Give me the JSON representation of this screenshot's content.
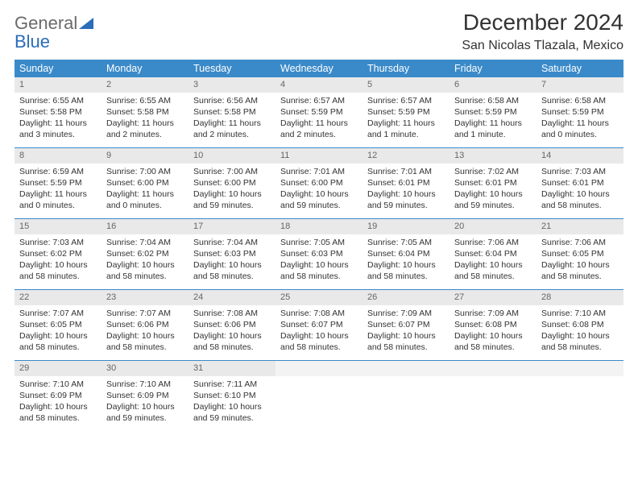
{
  "brand": {
    "word1": "General",
    "word2": "Blue",
    "word1_color": "#6a6a6a",
    "word2_color": "#2a6db8",
    "triangle_color": "#2a6db8"
  },
  "title": "December 2024",
  "location": "San Nicolas Tlazala, Mexico",
  "colors": {
    "header_bg": "#3a8ac9",
    "header_text": "#ffffff",
    "datenum_bg": "#e9e9e9",
    "datenum_text": "#666666",
    "row_divider": "#3a8ac9",
    "body_text": "#333333",
    "page_bg": "#ffffff"
  },
  "typography": {
    "title_fontsize": 28,
    "location_fontsize": 16,
    "dayheader_fontsize": 12.5,
    "cell_fontsize": 10.5,
    "datenum_fontsize": 11
  },
  "day_headers": [
    "Sunday",
    "Monday",
    "Tuesday",
    "Wednesday",
    "Thursday",
    "Friday",
    "Saturday"
  ],
  "weeks": [
    [
      {
        "date": "1",
        "sunrise": "6:55 AM",
        "sunset": "5:58 PM",
        "daylight": "11 hours and 3 minutes."
      },
      {
        "date": "2",
        "sunrise": "6:55 AM",
        "sunset": "5:58 PM",
        "daylight": "11 hours and 2 minutes."
      },
      {
        "date": "3",
        "sunrise": "6:56 AM",
        "sunset": "5:58 PM",
        "daylight": "11 hours and 2 minutes."
      },
      {
        "date": "4",
        "sunrise": "6:57 AM",
        "sunset": "5:59 PM",
        "daylight": "11 hours and 2 minutes."
      },
      {
        "date": "5",
        "sunrise": "6:57 AM",
        "sunset": "5:59 PM",
        "daylight": "11 hours and 1 minute."
      },
      {
        "date": "6",
        "sunrise": "6:58 AM",
        "sunset": "5:59 PM",
        "daylight": "11 hours and 1 minute."
      },
      {
        "date": "7",
        "sunrise": "6:58 AM",
        "sunset": "5:59 PM",
        "daylight": "11 hours and 0 minutes."
      }
    ],
    [
      {
        "date": "8",
        "sunrise": "6:59 AM",
        "sunset": "5:59 PM",
        "daylight": "11 hours and 0 minutes."
      },
      {
        "date": "9",
        "sunrise": "7:00 AM",
        "sunset": "6:00 PM",
        "daylight": "11 hours and 0 minutes."
      },
      {
        "date": "10",
        "sunrise": "7:00 AM",
        "sunset": "6:00 PM",
        "daylight": "10 hours and 59 minutes."
      },
      {
        "date": "11",
        "sunrise": "7:01 AM",
        "sunset": "6:00 PM",
        "daylight": "10 hours and 59 minutes."
      },
      {
        "date": "12",
        "sunrise": "7:01 AM",
        "sunset": "6:01 PM",
        "daylight": "10 hours and 59 minutes."
      },
      {
        "date": "13",
        "sunrise": "7:02 AM",
        "sunset": "6:01 PM",
        "daylight": "10 hours and 59 minutes."
      },
      {
        "date": "14",
        "sunrise": "7:03 AM",
        "sunset": "6:01 PM",
        "daylight": "10 hours and 58 minutes."
      }
    ],
    [
      {
        "date": "15",
        "sunrise": "7:03 AM",
        "sunset": "6:02 PM",
        "daylight": "10 hours and 58 minutes."
      },
      {
        "date": "16",
        "sunrise": "7:04 AM",
        "sunset": "6:02 PM",
        "daylight": "10 hours and 58 minutes."
      },
      {
        "date": "17",
        "sunrise": "7:04 AM",
        "sunset": "6:03 PM",
        "daylight": "10 hours and 58 minutes."
      },
      {
        "date": "18",
        "sunrise": "7:05 AM",
        "sunset": "6:03 PM",
        "daylight": "10 hours and 58 minutes."
      },
      {
        "date": "19",
        "sunrise": "7:05 AM",
        "sunset": "6:04 PM",
        "daylight": "10 hours and 58 minutes."
      },
      {
        "date": "20",
        "sunrise": "7:06 AM",
        "sunset": "6:04 PM",
        "daylight": "10 hours and 58 minutes."
      },
      {
        "date": "21",
        "sunrise": "7:06 AM",
        "sunset": "6:05 PM",
        "daylight": "10 hours and 58 minutes."
      }
    ],
    [
      {
        "date": "22",
        "sunrise": "7:07 AM",
        "sunset": "6:05 PM",
        "daylight": "10 hours and 58 minutes."
      },
      {
        "date": "23",
        "sunrise": "7:07 AM",
        "sunset": "6:06 PM",
        "daylight": "10 hours and 58 minutes."
      },
      {
        "date": "24",
        "sunrise": "7:08 AM",
        "sunset": "6:06 PM",
        "daylight": "10 hours and 58 minutes."
      },
      {
        "date": "25",
        "sunrise": "7:08 AM",
        "sunset": "6:07 PM",
        "daylight": "10 hours and 58 minutes."
      },
      {
        "date": "26",
        "sunrise": "7:09 AM",
        "sunset": "6:07 PM",
        "daylight": "10 hours and 58 minutes."
      },
      {
        "date": "27",
        "sunrise": "7:09 AM",
        "sunset": "6:08 PM",
        "daylight": "10 hours and 58 minutes."
      },
      {
        "date": "28",
        "sunrise": "7:10 AM",
        "sunset": "6:08 PM",
        "daylight": "10 hours and 58 minutes."
      }
    ],
    [
      {
        "date": "29",
        "sunrise": "7:10 AM",
        "sunset": "6:09 PM",
        "daylight": "10 hours and 58 minutes."
      },
      {
        "date": "30",
        "sunrise": "7:10 AM",
        "sunset": "6:09 PM",
        "daylight": "10 hours and 59 minutes."
      },
      {
        "date": "31",
        "sunrise": "7:11 AM",
        "sunset": "6:10 PM",
        "daylight": "10 hours and 59 minutes."
      },
      null,
      null,
      null,
      null
    ]
  ],
  "labels": {
    "sunrise_prefix": "Sunrise: ",
    "sunset_prefix": "Sunset: ",
    "daylight_prefix": "Daylight: "
  }
}
